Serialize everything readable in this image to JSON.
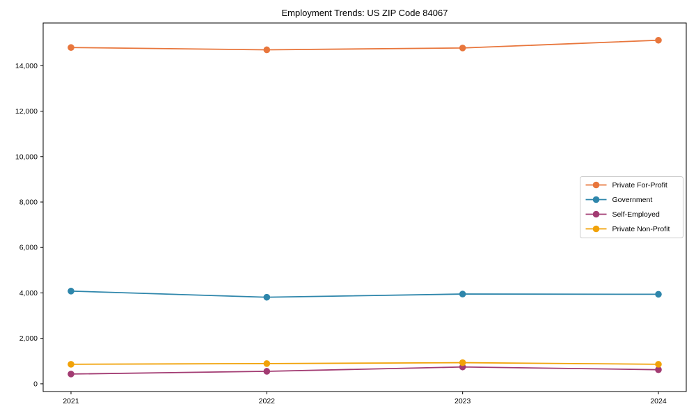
{
  "chart_data": {
    "type": "line",
    "title": "Employment Trends: US ZIP Code 84067",
    "categories": [
      "2021",
      "2022",
      "2023",
      "2024"
    ],
    "series": [
      {
        "name": "Private For-Profit",
        "color": "#E8763C",
        "values": [
          14800,
          14700,
          14780,
          15120
        ]
      },
      {
        "name": "Government",
        "color": "#2E86AB",
        "values": [
          4080,
          3810,
          3950,
          3940
        ]
      },
      {
        "name": "Self-Employed",
        "color": "#A23B72",
        "values": [
          430,
          550,
          740,
          620
        ]
      },
      {
        "name": "Private Non-Profit",
        "color": "#F1A208",
        "values": [
          860,
          890,
          930,
          860
        ]
      }
    ],
    "y_ticks": [
      0,
      2000,
      4000,
      6000,
      8000,
      10000,
      12000,
      14000
    ],
    "y_tick_labels": [
      "0",
      "2,000",
      "4,000",
      "6,000",
      "8,000",
      "10,000",
      "12,000",
      "14,000"
    ],
    "ylim": [
      -340,
      15880
    ],
    "xlabel": "",
    "ylabel": "",
    "grid": false,
    "legend_position": "center right",
    "marker": "circle",
    "axis_color": "#000000",
    "legend_border_color": "#cccccc",
    "legend_background": "#ffffff"
  }
}
